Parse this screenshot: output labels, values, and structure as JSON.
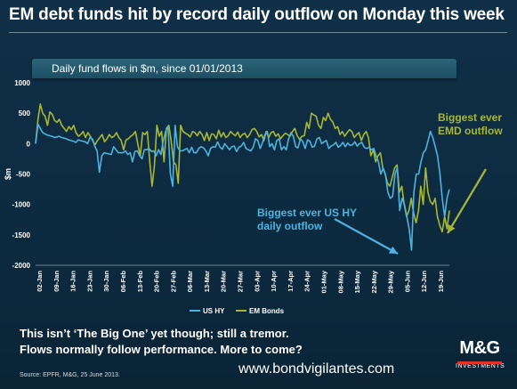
{
  "title": "EM debt funds hit by record daily outflow on Monday this week",
  "footer": {
    "line1": "This isn’t ‘The Big One’ yet though; still a tremor.",
    "line2": "Flows normally follow performance. More to come?",
    "source": "Source: EPFR, M&G, 25 June 2013.",
    "website": "www.bondvigilantes.com"
  },
  "logo": {
    "main": "M&G",
    "sub": "INVESTMENTS"
  },
  "annotations": {
    "emd": "Biggest ever EMD outflow",
    "ushy": "Biggest ever US HY daily outflow"
  },
  "colors": {
    "us_hy": "#4fb3de",
    "em_bonds": "#a8b832",
    "axis_text": "#ffffff",
    "banner": "#1d4f63"
  },
  "chart_data": {
    "type": "line",
    "title": "Daily fund flows in $m, since 01/01/2013",
    "ylabel": "$m",
    "xlabel": "",
    "ylim": [
      -2000,
      1000
    ],
    "yticks": [
      1000,
      500,
      0,
      -500,
      -1000,
      -1500,
      -2000
    ],
    "xticks": [
      "02-Jan",
      "09-Jan",
      "16-Jan",
      "23-Jan",
      "30-Jan",
      "06-Feb",
      "13-Feb",
      "20-Feb",
      "27-Feb",
      "06-Mar",
      "13-Mar",
      "20-Mar",
      "27-Mar",
      "03-Apr",
      "10-Apr",
      "17-Apr",
      "24-Apr",
      "01-May",
      "08-May",
      "15-May",
      "22-May",
      "29-May",
      "05-Jun",
      "12-Jun",
      "19-Jun"
    ],
    "legend_position": "bottom",
    "grid": false,
    "series": [
      {
        "name": "US HY",
        "values": [
          0,
          320,
          250,
          180,
          160,
          140,
          130,
          120,
          100,
          110,
          120,
          100,
          90,
          80,
          60,
          50,
          40,
          20,
          60,
          50,
          40,
          30,
          0,
          100,
          80,
          -40,
          -120,
          -470,
          -200,
          -150,
          -160,
          -170,
          -180,
          -50,
          -100,
          -150,
          -150,
          -150,
          -120,
          -180,
          -150,
          -300,
          -130,
          -120,
          -200,
          -250,
          -100,
          -100,
          -80,
          -130,
          -120,
          -200,
          -100,
          -180,
          50,
          200,
          280,
          -500,
          -700,
          300,
          -50,
          -120,
          -120,
          -100,
          -80,
          -150,
          -60,
          -150,
          -150,
          -80,
          -50,
          -70,
          -120,
          -200,
          -80,
          -50,
          -60,
          30,
          -60,
          -90,
          0,
          -50,
          -100,
          -50,
          -40,
          -130,
          -60,
          -40,
          20,
          -80,
          -100,
          -120,
          -60,
          80,
          50,
          -80,
          20,
          150,
          200,
          -50,
          0,
          -100,
          50,
          80,
          -100,
          -50,
          -100,
          80,
          180,
          120,
          -50,
          -70,
          80,
          30,
          -80,
          60,
          40,
          -60,
          -40,
          80,
          100,
          0,
          30,
          50,
          -80,
          -40,
          -20,
          20,
          -60,
          -30,
          20,
          -50,
          10,
          -30,
          -20,
          30,
          -40,
          0,
          20,
          -60,
          -80,
          -60,
          -100,
          -80,
          -200,
          -300,
          -500,
          -400,
          -520,
          -800,
          -900,
          -870,
          -500,
          -400,
          -1100,
          -900,
          -1000,
          -1200,
          -1400,
          -1750,
          -800,
          -500,
          -500,
          -300,
          -150,
          -100,
          50,
          200,
          100,
          -50,
          -200,
          -500,
          -900,
          -1200,
          -900,
          -750
        ],
        "color": "#4fb3de"
      },
      {
        "name": "EM Bonds",
        "values": [
          0,
          400,
          650,
          500,
          450,
          300,
          520,
          480,
          380,
          350,
          400,
          300,
          250,
          200,
          280,
          230,
          300,
          180,
          120,
          150,
          200,
          100,
          180,
          120,
          50,
          -20,
          50,
          100,
          150,
          30,
          80,
          150,
          100,
          120,
          180,
          100,
          50,
          -100,
          60,
          80,
          120,
          150,
          200,
          -10,
          -200,
          180,
          150,
          200,
          -300,
          -700,
          -350,
          300,
          120,
          200,
          -300,
          250,
          300,
          50,
          -300,
          -350,
          -650,
          300,
          200,
          170,
          150,
          110,
          200,
          180,
          130,
          200,
          150,
          50,
          180,
          50,
          160,
          150,
          80,
          220,
          110,
          180,
          100,
          130,
          200,
          160,
          130,
          190,
          100,
          150,
          170,
          100,
          150,
          230,
          250,
          200,
          110,
          150,
          50,
          200,
          100,
          180,
          200,
          120,
          160,
          80,
          130,
          170,
          150,
          120,
          200,
          250,
          130,
          70,
          120,
          130,
          350,
          250,
          500,
          470,
          450,
          300,
          250,
          430,
          380,
          500,
          400,
          350,
          250,
          280,
          150,
          200,
          120,
          180,
          230,
          200,
          100,
          150,
          180,
          50,
          150,
          200,
          100,
          -200,
          -100,
          -300,
          -200,
          -150,
          -400,
          -500,
          -650,
          -700,
          -550,
          -400,
          -350,
          -800,
          -700,
          -1000,
          -1200,
          -1100,
          -900,
          -1150,
          -1300,
          -1100,
          -700,
          -1000,
          -400,
          -800,
          -950,
          -1000,
          -900,
          -1200,
          -1350,
          -1450,
          -1200,
          -1400,
          -1100
        ]
      }
    ]
  }
}
